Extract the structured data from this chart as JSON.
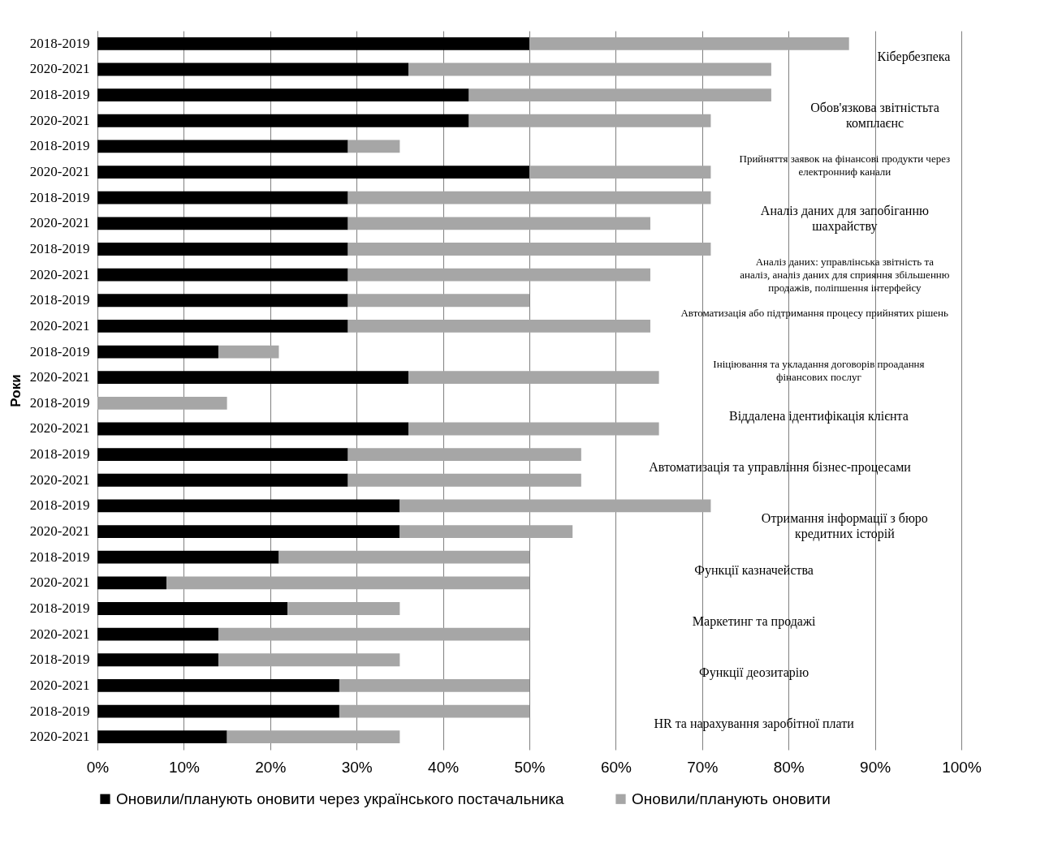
{
  "chart_data": {
    "type": "bar",
    "orientation": "horizontal",
    "stacked": true,
    "ylabel": "Роки",
    "categories": [
      "2018-2019",
      "2020-2021",
      "2018-2019",
      "2020-2021",
      "2018-2019",
      "2020-2021",
      "2018-2019",
      "2020-2021",
      "2018-2019",
      "2020-2021",
      "2018-2019",
      "2020-2021",
      "2018-2019",
      "2020-2021",
      "2018-2019",
      "2020-2021",
      "2018-2019",
      "2020-2021",
      "2018-2019",
      "2020-2021",
      "2018-2019",
      "2020-2021",
      "2018-2019",
      "2020-2021",
      "2018-2019",
      "2020-2021",
      "2018-2019",
      "2020-2021"
    ],
    "series": [
      {
        "name": "Оновили/планують оновити через українського постачальника",
        "color": "#000000",
        "values": [
          50,
          36,
          43,
          43,
          29,
          50,
          29,
          29,
          29,
          29,
          29,
          29,
          14,
          36,
          0,
          36,
          29,
          29,
          35,
          35,
          21,
          8,
          22,
          14,
          14,
          28,
          28,
          15
        ]
      },
      {
        "name": "Оновили/планують оновити",
        "color": "#a6a6a6",
        "values": [
          37,
          42,
          35,
          28,
          6,
          21,
          42,
          35,
          42,
          35,
          21,
          35,
          7,
          29,
          15,
          29,
          27,
          27,
          36,
          20,
          29,
          42,
          13,
          36,
          21,
          22,
          22,
          20
        ]
      }
    ],
    "xlim": [
      0,
      100
    ],
    "xticks": [
      {
        "value": 0,
        "label": "0%"
      },
      {
        "value": 10,
        "label": "10%"
      },
      {
        "value": 20,
        "label": "20%"
      },
      {
        "value": 30,
        "label": "30%"
      },
      {
        "value": 40,
        "label": "40%"
      },
      {
        "value": 50,
        "label": "50%"
      },
      {
        "value": 60,
        "label": "60%"
      },
      {
        "value": 70,
        "label": "70%"
      },
      {
        "value": 80,
        "label": "80%"
      },
      {
        "value": 90,
        "label": "90%"
      },
      {
        "value": 100,
        "label": "100%"
      }
    ],
    "grid": "x",
    "legend": "bottom",
    "annotations": [
      "Кібербезпека",
      "Обов'язкова звітністьта комплаєнс",
      "Прийняття заявок на фінансові продукти через електронниф канали",
      "Аналіз даних для запобіганню шахрайству",
      "Аналіз даних: управлінська звітність та аналіз, аналіз даних для сприяння збільшенню продажів, поліпшення інтерфейсу",
      "Автоматизація або підтримання процесу прийнятих рішень",
      "Ініціювання та укладання договорів проадання фінансових послуг",
      "Віддалена ідентифікація клієнта",
      "Автоматизація та управління бізнес-процесами",
      "Отримання інформації з бюро кредитних історій",
      "Функції казначейства",
      "Маркетинг та продажі",
      "Функції деозитарію",
      "HR та нарахування заробітної плати"
    ]
  }
}
